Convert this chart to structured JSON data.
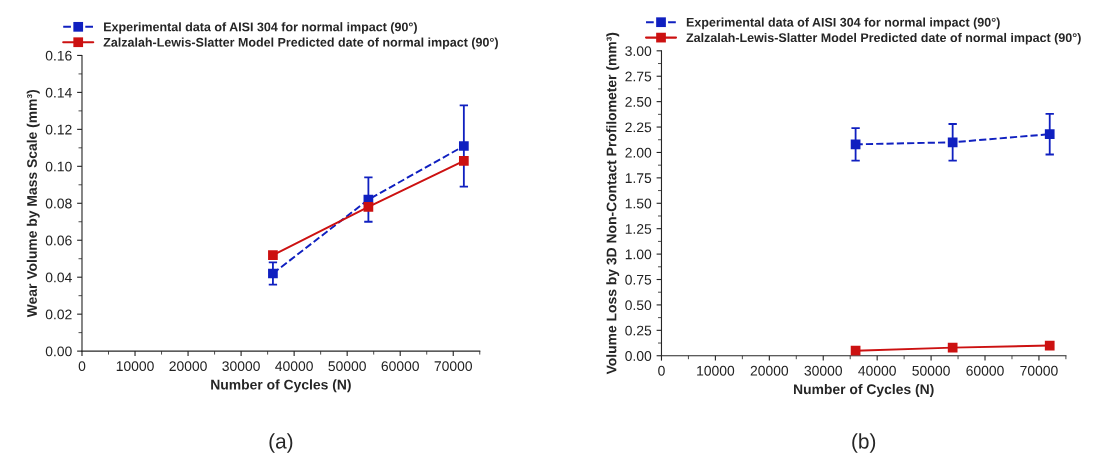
{
  "chart_data": [
    {
      "type": "line",
      "xlabel": "Number of Cycles (N)",
      "ylabel": "Wear Volume by Mass Scale (mm³)",
      "x": [
        36000,
        54000,
        72000
      ],
      "xlim": [
        0,
        75000
      ],
      "xticks": [
        0,
        10000,
        20000,
        30000,
        40000,
        50000,
        60000,
        70000
      ],
      "ylim": [
        0,
        0.16
      ],
      "yticks": [
        {
          "value": 0,
          "label": "0.00"
        },
        {
          "value": 0.02,
          "label": "0.02"
        },
        {
          "value": 0.04,
          "label": "0.04"
        },
        {
          "value": 0.06,
          "label": "0.06"
        },
        {
          "value": 0.08,
          "label": "0.08"
        },
        {
          "value": 0.1,
          "label": "0.10"
        },
        {
          "value": 0.12,
          "label": "0.12"
        },
        {
          "value": 0.14,
          "label": "0.14"
        },
        {
          "value": 0.16,
          "label": "0.16"
        }
      ],
      "marker": "square",
      "legend": "top",
      "grid": false,
      "annotations": [
        "(a)"
      ],
      "series": [
        {
          "name": "Experimental data of AISI 304 for normal impact (90°)",
          "color": "#1020c0",
          "line_style": "dashed",
          "values": [
            0.042,
            0.082,
            0.111
          ],
          "errors": [
            [
              0.036,
              0.048
            ],
            [
              0.07,
              0.094
            ],
            [
              0.089,
              0.133
            ]
          ]
        },
        {
          "name": "Zalzalah-Lewis-Slatter Model Predicted date of normal impact (90°)",
          "color": "#cc1111",
          "line_style": "solid",
          "values": [
            0.052,
            0.078,
            0.103
          ]
        }
      ]
    },
    {
      "type": "line",
      "xlabel": "Number of Cycles (N)",
      "ylabel": "Volume Loss by 3D Non-Contact Profilometer (mm³)",
      "x": [
        36000,
        54000,
        72000
      ],
      "xlim": [
        0,
        75000
      ],
      "xticks": [
        0,
        10000,
        20000,
        30000,
        40000,
        50000,
        60000,
        70000
      ],
      "ylim": [
        0,
        3.0
      ],
      "yticks": [
        {
          "value": 0,
          "label": "0.00"
        },
        {
          "value": 0.25,
          "label": "0.25"
        },
        {
          "value": 0.5,
          "label": "0.50"
        },
        {
          "value": 0.75,
          "label": "0.75"
        },
        {
          "value": 1,
          "label": "1.00"
        },
        {
          "value": 1.25,
          "label": "1.25"
        },
        {
          "value": 1.5,
          "label": "1.50"
        },
        {
          "value": 1.75,
          "label": "1.75"
        },
        {
          "value": 2,
          "label": "2.00"
        },
        {
          "value": 2.25,
          "label": "2.25"
        },
        {
          "value": 2.5,
          "label": "2.50"
        },
        {
          "value": 2.75,
          "label": "2.75"
        },
        {
          "value": 3,
          "label": "3.00"
        }
      ],
      "marker": "square",
      "legend": "top",
      "grid": false,
      "annotations": [
        "(b)"
      ],
      "series": [
        {
          "name": "Experimental data of AISI 304 for normal impact (90°)",
          "color": "#1020c0",
          "line_style": "dashed",
          "values": [
            2.08,
            2.1,
            2.18
          ],
          "errors": [
            [
              1.92,
              2.24
            ],
            [
              1.92,
              2.28
            ],
            [
              1.98,
              2.38
            ]
          ]
        },
        {
          "name": "Zalzalah-Lewis-Slatter Model Predicted date of normal impact (90°)",
          "color": "#cc1111",
          "line_style": "solid",
          "values": [
            0.05,
            0.08,
            0.1
          ]
        }
      ]
    }
  ]
}
